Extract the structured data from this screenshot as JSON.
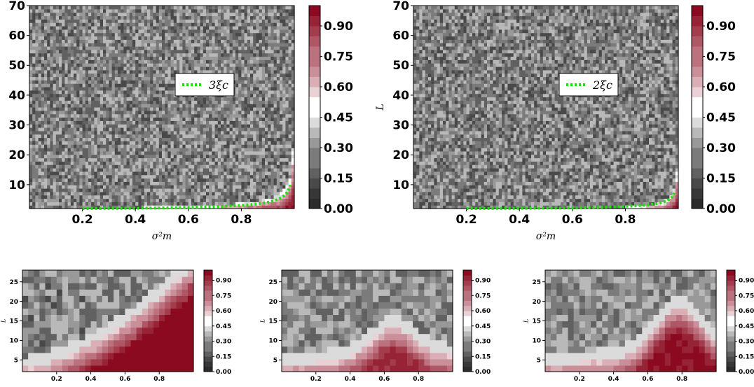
{
  "colors": {
    "low": "#2b2b2b",
    "mid": "#ffffff",
    "high": "#8b0a1f",
    "curve": "#22dd11"
  },
  "chart_data": [
    {
      "type": "heatmap",
      "xlabel": "σ²m",
      "ylabel": "L",
      "xlim": [
        0.0,
        1.0
      ],
      "ylim": [
        2,
        70
      ],
      "xticks": [
        "0.2",
        "0.4",
        "0.6",
        "0.8"
      ],
      "yticks": [
        "10",
        "20",
        "30",
        "40",
        "50",
        "60",
        "70"
      ],
      "colorbar_ticks": [
        "0.00",
        "0.15",
        "0.30",
        "0.45",
        "0.60",
        "0.75",
        "0.90"
      ],
      "legend": "3ξc",
      "curve_factor": 3
    },
    {
      "type": "heatmap",
      "xlabel": "σ²m",
      "ylabel": "L",
      "xlim": [
        0.0,
        1.0
      ],
      "ylim": [
        2,
        70
      ],
      "xticks": [
        "0.2",
        "0.4",
        "0.6",
        "0.8"
      ],
      "yticks": [
        "10",
        "20",
        "30",
        "40",
        "50",
        "60",
        "70"
      ],
      "colorbar_ticks": [
        "0.00",
        "0.15",
        "0.30",
        "0.45",
        "0.60",
        "0.75",
        "0.90"
      ],
      "legend": "2ξc",
      "curve_factor": 2
    },
    {
      "type": "heatmap",
      "xlabel": "σ²m",
      "ylabel": "L",
      "xlim": [
        0.0,
        1.0
      ],
      "ylim": [
        2,
        28
      ],
      "xticks": [
        "0.2",
        "0.4",
        "0.6",
        "0.8"
      ],
      "yticks": [
        "5",
        "10",
        "15",
        "20",
        "25"
      ],
      "colorbar_ticks": [
        "0.00",
        "0.15",
        "0.30",
        "0.45",
        "0.60",
        "0.75",
        "0.90"
      ]
    },
    {
      "type": "heatmap",
      "xlabel": "σ²m",
      "ylabel": "L",
      "xlim": [
        0.0,
        1.0
      ],
      "ylim": [
        2,
        28
      ],
      "xticks": [
        "0.2",
        "0.4",
        "0.6",
        "0.8"
      ],
      "yticks": [
        "5",
        "10",
        "15",
        "20",
        "25"
      ],
      "colorbar_ticks": [
        "0.00",
        "0.15",
        "0.30",
        "0.45",
        "0.60",
        "0.75",
        "0.90"
      ]
    },
    {
      "type": "heatmap",
      "xlabel": "σ²m",
      "ylabel": "L",
      "xlim": [
        0.0,
        1.0
      ],
      "ylim": [
        2,
        28
      ],
      "xticks": [
        "0.2",
        "0.4",
        "0.6",
        "0.8"
      ],
      "yticks": [
        "5",
        "10",
        "15",
        "20",
        "25"
      ],
      "colorbar_ticks": [
        "0.00",
        "0.15",
        "0.30",
        "0.45",
        "0.60",
        "0.75",
        "0.90"
      ]
    }
  ]
}
